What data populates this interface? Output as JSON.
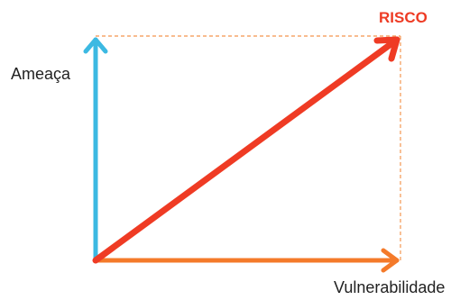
{
  "diagram": {
    "threat_label": "Ameaça",
    "risk_label": "RISCO",
    "vulnerability_label": "Vulnerabilidade"
  },
  "colors": {
    "threat_arrow": "#3cb9e2",
    "vulnerability_arrow": "#f47a2a",
    "risk_arrow": "#ef3b24",
    "guide_lines": "#f5a56a",
    "text": "#222222",
    "risk_text": "#ee3b24"
  }
}
